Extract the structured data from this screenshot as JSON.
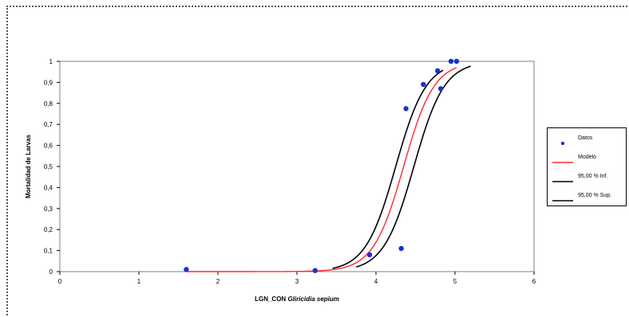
{
  "chart_data": {
    "type": "scatter",
    "title": "",
    "xlabel": "LGN_CON ",
    "xlabel_italic": "Gliricidia sepium",
    "ylabel": "Mortalidad de Larvas",
    "xlim": [
      0,
      6
    ],
    "ylim": [
      0,
      1
    ],
    "x_ticks": [
      "0",
      "1",
      "2",
      "3",
      "4",
      "5",
      "6"
    ],
    "y_ticks": [
      "0",
      "0,1",
      "0,2",
      "0,3",
      "0,4",
      "0,5",
      "0,6",
      "0,7",
      "0,8",
      "0,9",
      "1"
    ],
    "grid": false,
    "legend_position": "right",
    "series": [
      {
        "name": "Datos",
        "kind": "points",
        "color": "#1f2fd0",
        "points": [
          [
            1.6,
            0.01
          ],
          [
            3.23,
            0.005
          ],
          [
            3.92,
            0.08
          ],
          [
            4.32,
            0.11
          ],
          [
            4.38,
            0.775
          ],
          [
            4.6,
            0.89
          ],
          [
            4.78,
            0.955
          ],
          [
            4.82,
            0.87
          ],
          [
            4.95,
            1.0
          ],
          [
            5.02,
            1.0
          ]
        ]
      },
      {
        "name": "Modelo",
        "kind": "line",
        "color": "#ff2a2a",
        "model": {
          "center": 4.35,
          "slope": 5.2
        },
        "x_range": [
          1.6,
          5.02
        ]
      },
      {
        "name": "95,00 % Inf.",
        "kind": "line",
        "color": "#000000",
        "model": {
          "center": 4.25,
          "slope": 5.2
        },
        "x_range": [
          3.45,
          4.85
        ]
      },
      {
        "name": "95,00 % Sup.",
        "kind": "line",
        "color": "#000000",
        "model": {
          "center": 4.48,
          "slope": 5.2
        },
        "x_range": [
          3.75,
          5.2
        ]
      }
    ]
  }
}
